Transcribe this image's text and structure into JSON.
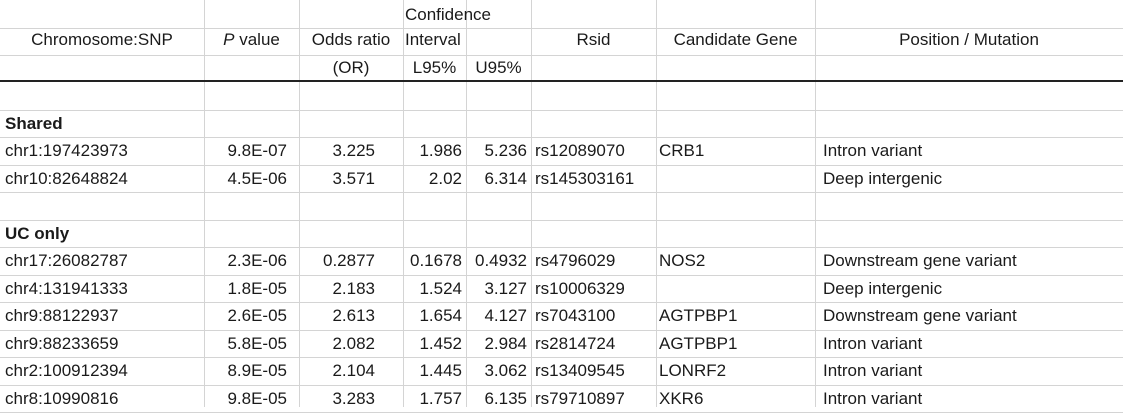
{
  "header": {
    "chromosome_snp": "Chromosome:SNP",
    "p_italic": "P",
    "p_rest": " value",
    "odds_ratio_line1": "Odds ratio",
    "odds_ratio_line2": "(OR)",
    "ci_line1": "Confidence",
    "ci_line2": "Interval",
    "l95": "L95%",
    "u95": "U95%",
    "rsid": "Rsid",
    "candidate_gene": "Candidate Gene",
    "position_mutation": "Position / Mutation"
  },
  "sections": [
    {
      "title": "Shared",
      "rows": [
        {
          "snp": "chr1:197423973",
          "p": "9.8E-07",
          "or": "3.225",
          "l95": "1.986",
          "u95": "5.236",
          "rsid": "rs12089070",
          "gene": "CRB1",
          "mutation": "Intron variant"
        },
        {
          "snp": "chr10:82648824",
          "p": "4.5E-06",
          "or": "3.571",
          "l95": "2.02",
          "u95": "6.314",
          "rsid": "rs145303161",
          "gene": "",
          "mutation": "Deep intergenic"
        }
      ]
    },
    {
      "title": "UC only",
      "rows": [
        {
          "snp": "chr17:26082787",
          "p": "2.3E-06",
          "or": "0.2877",
          "l95": "0.1678",
          "u95": "0.4932",
          "rsid": "rs4796029",
          "gene": "NOS2",
          "mutation": "Downstream gene variant"
        },
        {
          "snp": "chr4:131941333",
          "p": "1.8E-05",
          "or": "2.183",
          "l95": "1.524",
          "u95": "3.127",
          "rsid": "rs10006329",
          "gene": "",
          "mutation": "Deep intergenic"
        },
        {
          "snp": "chr9:88122937",
          "p": "2.6E-05",
          "or": "2.613",
          "l95": "1.654",
          "u95": "4.127",
          "rsid": "rs7043100",
          "gene": "AGTPBP1",
          "mutation": "Downstream gene variant"
        },
        {
          "snp": "chr9:88233659",
          "p": "5.8E-05",
          "or": "2.082",
          "l95": "1.452",
          "u95": "2.984",
          "rsid": "rs2814724",
          "gene": "AGTPBP1",
          "mutation": "Intron variant"
        },
        {
          "snp": "chr2:100912394",
          "p": "8.9E-05",
          "or": "2.104",
          "l95": "1.445",
          "u95": "3.062",
          "rsid": "rs13409545",
          "gene": "LONRF2",
          "mutation": "Intron variant"
        },
        {
          "snp": "chr8:10990816",
          "p": "9.8E-05",
          "or": "3.283",
          "l95": "1.757",
          "u95": "6.135",
          "rsid": "rs79710897",
          "gene": "XKR6",
          "mutation": "Intron variant"
        }
      ]
    }
  ]
}
